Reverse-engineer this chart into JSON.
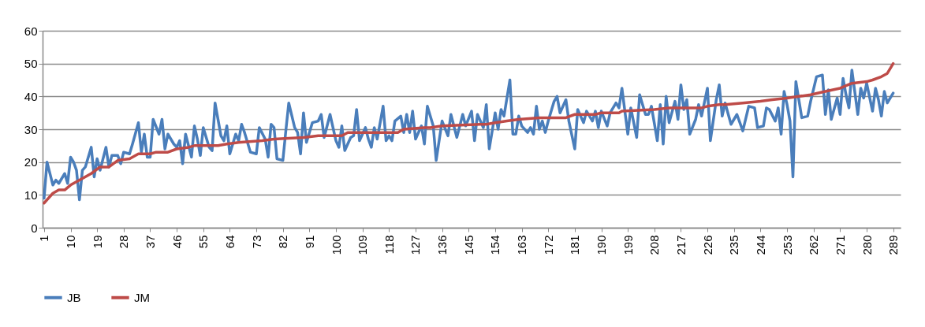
{
  "chart_data": {
    "type": "line",
    "xlim": [
      0.5,
      291.5
    ],
    "xticks": [
      1,
      10,
      19,
      28,
      37,
      46,
      55,
      64,
      73,
      82,
      91,
      100,
      109,
      118,
      127,
      136,
      145,
      154,
      163,
      172,
      181,
      190,
      199,
      208,
      217,
      226,
      235,
      244,
      253,
      262,
      271,
      280,
      289
    ],
    "ylim": [
      0,
      60
    ],
    "yticks": [
      0,
      10,
      20,
      30,
      40,
      50,
      60
    ],
    "grid": "y",
    "legend": "bottom",
    "marker": "none",
    "line_style": "solid",
    "series": [
      {
        "name": "JB",
        "color": "#4a7ebb",
        "x": [
          1,
          2,
          4,
          5,
          6,
          8,
          9,
          10,
          11,
          12,
          13,
          14,
          15,
          17,
          18,
          19,
          20,
          22,
          23,
          24,
          26,
          27,
          28,
          30,
          31,
          33,
          34,
          35,
          36,
          37,
          38,
          40,
          41,
          42,
          43,
          45,
          46,
          47,
          48,
          49,
          51,
          52,
          53,
          54,
          55,
          57,
          58,
          59,
          61,
          62,
          63,
          64,
          66,
          67,
          68,
          69,
          70,
          71,
          73,
          74,
          76,
          77,
          78,
          79,
          80,
          82,
          83,
          84,
          86,
          87,
          88,
          89,
          90,
          92,
          94,
          95,
          96,
          98,
          100,
          101,
          102,
          103,
          105,
          106,
          107,
          108,
          110,
          111,
          112,
          113,
          114,
          116,
          117,
          118,
          119,
          120,
          122,
          123,
          124,
          125,
          126,
          127,
          129,
          130,
          131,
          133,
          134,
          136,
          138,
          139,
          141,
          143,
          144,
          146,
          147,
          148,
          150,
          151,
          152,
          154,
          155,
          156,
          157,
          159,
          160,
          161,
          162,
          163,
          165,
          166,
          167,
          168,
          169,
          170,
          171,
          172,
          174,
          175,
          176,
          178,
          179,
          181,
          182,
          184,
          185,
          187,
          188,
          189,
          190,
          192,
          193,
          195,
          196,
          197,
          199,
          200,
          202,
          203,
          205,
          206,
          207,
          209,
          210,
          211,
          212,
          213,
          215,
          216,
          217,
          218,
          219,
          220,
          222,
          223,
          224,
          226,
          227,
          229,
          230,
          231,
          232,
          234,
          236,
          238,
          240,
          242,
          243,
          245,
          246,
          247,
          249,
          250,
          251,
          252,
          253,
          254,
          255,
          256,
          258,
          260,
          261,
          263,
          265,
          266,
          267,
          268,
          270,
          271,
          272,
          273,
          274,
          275,
          277,
          278,
          279,
          280,
          282,
          283,
          284,
          285,
          286,
          287,
          289
        ],
        "values": [
          9,
          20,
          13,
          14.5,
          13.5,
          16.5,
          13.5,
          21.5,
          20,
          17.5,
          8.5,
          17.5,
          18.5,
          24.5,
          15.5,
          21,
          17.5,
          24.5,
          18.5,
          22,
          22,
          19.5,
          23,
          22.5,
          25.5,
          32,
          23,
          28.5,
          21.5,
          21.5,
          33,
          28.5,
          33,
          24,
          28.5,
          25.5,
          24.5,
          26.5,
          19.5,
          28.5,
          21.5,
          31,
          27,
          22,
          30.5,
          24.5,
          23.5,
          38,
          28,
          26.5,
          31,
          22.5,
          28.5,
          26.5,
          31.5,
          29,
          26,
          23,
          22.5,
          30.5,
          27,
          21.5,
          31.5,
          30.5,
          21,
          20.5,
          29.5,
          38,
          30.5,
          29,
          22.5,
          35,
          26,
          32,
          32.5,
          34.5,
          27.5,
          34.5,
          26.5,
          24.5,
          31,
          23.5,
          27.5,
          28,
          36,
          26.5,
          30.5,
          27,
          24.5,
          30.5,
          27,
          37,
          26.5,
          28,
          26.5,
          32.5,
          34,
          29,
          34.5,
          29,
          35.5,
          27,
          31,
          25.5,
          37,
          31,
          20.5,
          32.5,
          28,
          34.5,
          27.5,
          34.5,
          31,
          35.5,
          26.5,
          34.5,
          30.5,
          37.5,
          24,
          35,
          30,
          36,
          34,
          45,
          28.5,
          28.5,
          34,
          31,
          29,
          30.5,
          28.5,
          37,
          30,
          32.5,
          29,
          32.5,
          38.5,
          40,
          35,
          39,
          32.5,
          24,
          36,
          32,
          35.5,
          32.5,
          35.5,
          30.5,
          35.5,
          31,
          35,
          38,
          36.5,
          42.5,
          28.5,
          36.5,
          27.5,
          40.5,
          34.5,
          34.5,
          37,
          26.5,
          37.5,
          25.5,
          40,
          32,
          38.5,
          33,
          43.5,
          36,
          39,
          28.5,
          33,
          37.5,
          34,
          42.5,
          26.5,
          39,
          43.5,
          34,
          38,
          31.5,
          34.5,
          29.5,
          37,
          36.5,
          30.5,
          31,
          36.5,
          36,
          32.5,
          36.5,
          28.5,
          41.5,
          37.5,
          32.5,
          15.5,
          44.5,
          33.5,
          34,
          38.5,
          46,
          46.5,
          34.5,
          42,
          33,
          39.5,
          34.5,
          45.5,
          40.5,
          36.5,
          48,
          34.5,
          42.5,
          39.5,
          44,
          35.5,
          42.5,
          39,
          34,
          41.5,
          38,
          41
        ]
      },
      {
        "name": "JM",
        "color": "#be4b48",
        "x": [
          1,
          4,
          6,
          8,
          10,
          14,
          17,
          20,
          23,
          26,
          30,
          33,
          37,
          39,
          43,
          46,
          50,
          52,
          60,
          63,
          67,
          75,
          79,
          89,
          94,
          98,
          102,
          104,
          121,
          123,
          130,
          132,
          136,
          149,
          151,
          154,
          158,
          162,
          169,
          170,
          178,
          181,
          188,
          190,
          196,
          197,
          208,
          213,
          224,
          226,
          230,
          232,
          238,
          244,
          248,
          253,
          257,
          261,
          266,
          271,
          275,
          280,
          282,
          285,
          287,
          289
        ],
        "values": [
          7.5,
          10.5,
          11.5,
          11.5,
          13,
          15,
          16.5,
          18.5,
          18.5,
          20.5,
          21,
          22.5,
          22.5,
          23,
          23,
          24,
          24.5,
          25,
          25,
          25.5,
          26,
          26.5,
          27,
          27.5,
          28,
          28,
          28,
          29,
          29,
          30,
          30.5,
          30.5,
          31,
          31.5,
          31.5,
          32,
          32.5,
          33,
          33.5,
          33.5,
          33.5,
          34.5,
          34.5,
          35,
          35,
          35.5,
          36,
          36.5,
          36.5,
          37,
          37.5,
          37.5,
          38,
          38.5,
          39,
          39.5,
          40,
          40.5,
          41.5,
          42.5,
          44,
          44.5,
          45,
          46,
          47,
          50
        ]
      }
    ]
  }
}
